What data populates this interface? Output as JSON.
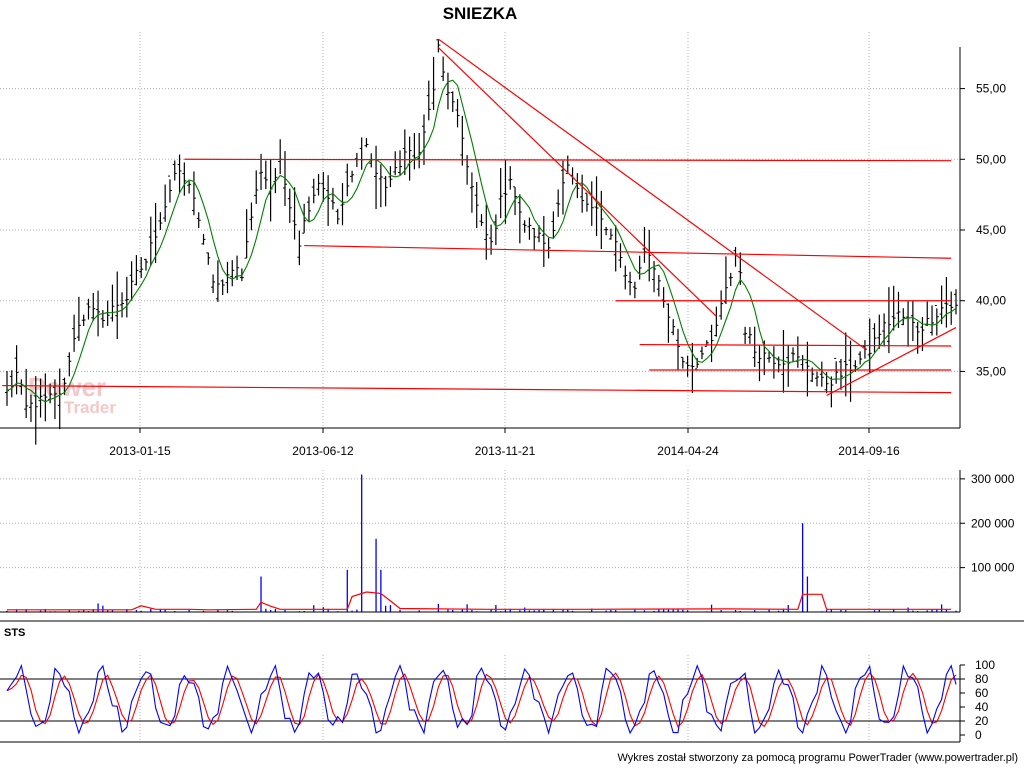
{
  "chart_data": {
    "title": "SNIEZKA",
    "footer": "Wykres został stworzony za pomocą programu PowerTrader (www.powertrader.pl)",
    "watermark": {
      "line1": "Power",
      "line2": "Trader"
    },
    "colors": {
      "price": "#000000",
      "ma": "#008000",
      "lines": "#ff0000",
      "volume": "#0000ff",
      "volume_ma": "#ff0000",
      "sts_k": "#0000ff",
      "sts_d": "#ff0000",
      "grid": "#b0b0b0"
    },
    "panels": [
      {
        "id": "price",
        "type": "bar",
        "ylim": [
          31,
          59
        ],
        "y_ticks": [
          35,
          40,
          45,
          50,
          55
        ],
        "y_tick_labels": [
          "35,00",
          "40,00",
          "45,00",
          "50,00",
          "55,00"
        ],
        "x_tick_labels": [
          "2013-01-15",
          "2013-06-12",
          "2013-11-21",
          "2014-04-24",
          "2014-09-16"
        ],
        "grid": true,
        "price_path": [
          {
            "i": 0,
            "v": 33.5
          },
          {
            "i": 2,
            "v": 34.8
          },
          {
            "i": 4,
            "v": 32.4
          },
          {
            "i": 6,
            "v": 32.8
          },
          {
            "i": 8,
            "v": 33.0
          },
          {
            "i": 10,
            "v": 33.2
          },
          {
            "i": 12,
            "v": 33.9
          },
          {
            "i": 13,
            "v": 36.0
          },
          {
            "i": 15,
            "v": 38.5
          },
          {
            "i": 17,
            "v": 39.3
          },
          {
            "i": 19,
            "v": 38.9
          },
          {
            "i": 21,
            "v": 39.0
          },
          {
            "i": 23,
            "v": 39.8
          },
          {
            "i": 25,
            "v": 40.2
          },
          {
            "i": 27,
            "v": 41.8
          },
          {
            "i": 29,
            "v": 42.8
          },
          {
            "i": 31,
            "v": 44.8
          },
          {
            "i": 33,
            "v": 46.8
          },
          {
            "i": 35,
            "v": 49.0
          },
          {
            "i": 37,
            "v": 48.5
          },
          {
            "i": 39,
            "v": 47.5
          },
          {
            "i": 41,
            "v": 44.0
          },
          {
            "i": 43,
            "v": 41.5
          },
          {
            "i": 45,
            "v": 40.8
          },
          {
            "i": 47,
            "v": 42.5
          },
          {
            "i": 49,
            "v": 42.0
          },
          {
            "i": 51,
            "v": 46.0
          },
          {
            "i": 53,
            "v": 49.3
          },
          {
            "i": 55,
            "v": 48.0
          },
          {
            "i": 57,
            "v": 49.6
          },
          {
            "i": 59,
            "v": 47.0
          },
          {
            "i": 61,
            "v": 44.2
          },
          {
            "i": 63,
            "v": 46.8
          },
          {
            "i": 65,
            "v": 48.5
          },
          {
            "i": 67,
            "v": 47.5
          },
          {
            "i": 69,
            "v": 45.8
          },
          {
            "i": 71,
            "v": 47.8
          },
          {
            "i": 73,
            "v": 49.8
          },
          {
            "i": 75,
            "v": 51.0
          },
          {
            "i": 77,
            "v": 49.0
          },
          {
            "i": 79,
            "v": 48.2
          },
          {
            "i": 81,
            "v": 49.0
          },
          {
            "i": 83,
            "v": 50.5
          },
          {
            "i": 85,
            "v": 50.0
          },
          {
            "i": 87,
            "v": 51.8
          },
          {
            "i": 89,
            "v": 55.0
          },
          {
            "i": 90,
            "v": 57.8
          },
          {
            "i": 91,
            "v": 56.0
          },
          {
            "i": 93,
            "v": 53.8
          },
          {
            "i": 95,
            "v": 51.5
          },
          {
            "i": 97,
            "v": 48.0
          },
          {
            "i": 99,
            "v": 45.2
          },
          {
            "i": 101,
            "v": 44.0
          },
          {
            "i": 103,
            "v": 47.0
          },
          {
            "i": 105,
            "v": 48.8
          },
          {
            "i": 107,
            "v": 46.0
          },
          {
            "i": 109,
            "v": 45.0
          },
          {
            "i": 111,
            "v": 44.5
          },
          {
            "i": 113,
            "v": 43.8
          },
          {
            "i": 115,
            "v": 47.0
          },
          {
            "i": 117,
            "v": 49.3
          },
          {
            "i": 119,
            "v": 47.5
          },
          {
            "i": 121,
            "v": 46.5
          },
          {
            "i": 123,
            "v": 47.0
          },
          {
            "i": 125,
            "v": 45.0
          },
          {
            "i": 127,
            "v": 44.0
          },
          {
            "i": 129,
            "v": 41.8
          },
          {
            "i": 131,
            "v": 40.5
          },
          {
            "i": 133,
            "v": 43.8
          },
          {
            "i": 135,
            "v": 42.5
          },
          {
            "i": 137,
            "v": 40.0
          },
          {
            "i": 139,
            "v": 38.0
          },
          {
            "i": 141,
            "v": 35.8
          },
          {
            "i": 143,
            "v": 35.5
          },
          {
            "i": 145,
            "v": 36.2
          },
          {
            "i": 147,
            "v": 37.0
          },
          {
            "i": 149,
            "v": 39.5
          },
          {
            "i": 151,
            "v": 41.8
          },
          {
            "i": 152,
            "v": 43.2
          },
          {
            "i": 153,
            "v": 42.0
          },
          {
            "i": 154,
            "v": 38.0
          },
          {
            "i": 156,
            "v": 36.5
          },
          {
            "i": 158,
            "v": 36.2
          },
          {
            "i": 161,
            "v": 35.8
          },
          {
            "i": 164,
            "v": 36.0
          },
          {
            "i": 167,
            "v": 35.5
          },
          {
            "i": 170,
            "v": 34.2
          },
          {
            "i": 172,
            "v": 34.4
          },
          {
            "i": 174,
            "v": 34.8
          },
          {
            "i": 176,
            "v": 35.3
          },
          {
            "i": 178,
            "v": 35.8
          },
          {
            "i": 180,
            "v": 36.5
          },
          {
            "i": 182,
            "v": 37.8
          },
          {
            "i": 184,
            "v": 38.5
          },
          {
            "i": 186,
            "v": 39.0
          },
          {
            "i": 188,
            "v": 38.6
          },
          {
            "i": 190,
            "v": 38.0
          },
          {
            "i": 192,
            "v": 38.5
          },
          {
            "i": 194,
            "v": 39.2
          },
          {
            "i": 196,
            "v": 39.8
          },
          {
            "i": 198,
            "v": 39.5
          }
        ],
        "ma_period": 5,
        "lines": [
          {
            "p1": [
              -1,
              34.0
            ],
            "p2": [
              197,
              33.5
            ]
          },
          {
            "p1": [
              37,
              50.0
            ],
            "p2": [
              197,
              49.9
            ]
          },
          {
            "p1": [
              62,
              43.9
            ],
            "p2": [
              197,
              43.0
            ]
          },
          {
            "p1": [
              127,
              40.0
            ],
            "p2": [
              197,
              40.0
            ]
          },
          {
            "p1": [
              132,
              36.9
            ],
            "p2": [
              197,
              36.8
            ]
          },
          {
            "p1": [
              134,
              35.1
            ],
            "p2": [
              197,
              35.1
            ]
          },
          {
            "p1": [
              90,
              58.5
            ],
            "p2": [
              179,
              36.6
            ]
          },
          {
            "p1": [
              90,
              57.9
            ],
            "p2": [
              148,
              38.9
            ]
          },
          {
            "p1": [
              171,
              33.3
            ],
            "p2": [
              198,
              38.1
            ]
          }
        ]
      },
      {
        "id": "volume",
        "type": "bar",
        "ylim": [
          0,
          320000
        ],
        "y_ticks": [
          100000,
          200000,
          300000
        ],
        "y_tick_labels": [
          "100 000",
          "200 000",
          "300 000"
        ],
        "spikes": [
          {
            "i": 53,
            "v": 80000
          },
          {
            "i": 71,
            "v": 95000
          },
          {
            "i": 74,
            "v": 310000
          },
          {
            "i": 77,
            "v": 165000
          },
          {
            "i": 78,
            "v": 95000
          },
          {
            "i": 166,
            "v": 200000
          },
          {
            "i": 167,
            "v": 80000
          }
        ],
        "ma_path": [
          {
            "i": 0,
            "v": 5000
          },
          {
            "i": 26,
            "v": 5000
          },
          {
            "i": 28,
            "v": 14000
          },
          {
            "i": 31,
            "v": 6000
          },
          {
            "i": 38,
            "v": 6000
          },
          {
            "i": 42,
            "v": 5000
          },
          {
            "i": 52,
            "v": 6000
          },
          {
            "i": 53,
            "v": 22000
          },
          {
            "i": 55,
            "v": 13000
          },
          {
            "i": 57,
            "v": 6000
          },
          {
            "i": 71,
            "v": 6000
          },
          {
            "i": 72,
            "v": 35000
          },
          {
            "i": 75,
            "v": 45000
          },
          {
            "i": 78,
            "v": 42000
          },
          {
            "i": 80,
            "v": 25000
          },
          {
            "i": 82,
            "v": 8000
          },
          {
            "i": 100,
            "v": 6000
          },
          {
            "i": 120,
            "v": 6000
          },
          {
            "i": 150,
            "v": 7000
          },
          {
            "i": 165,
            "v": 6000
          },
          {
            "i": 166,
            "v": 40000
          },
          {
            "i": 170,
            "v": 40000
          },
          {
            "i": 171,
            "v": 6000
          },
          {
            "i": 197,
            "v": 6000
          }
        ]
      },
      {
        "id": "sts",
        "type": "line",
        "label": "STS",
        "ylim": [
          0,
          100
        ],
        "y_ticks": [
          0,
          20,
          40,
          60,
          80,
          100
        ],
        "y_tick_labels": [
          "0",
          "20",
          "40",
          "60",
          "80",
          "100"
        ],
        "levels": [
          20,
          80
        ]
      }
    ]
  }
}
